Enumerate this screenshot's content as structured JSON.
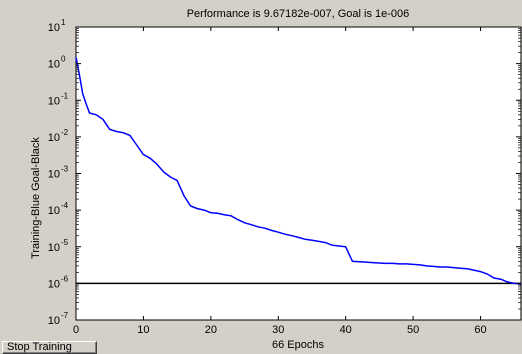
{
  "toolbar": {
    "stop_label": "Stop Training"
  },
  "colors": {
    "background": "#d4d0c8",
    "axes_bg": "#ffffff",
    "training": "#0000ff",
    "goal": "#000000"
  },
  "chart_data": {
    "type": "line",
    "title": "Performance is 9.67182e-007, Goal is 1e-006",
    "xlabel": "66 Epochs",
    "ylabel": "Training-Blue  Goal-Black",
    "xlim": [
      0,
      66
    ],
    "ylim": [
      1e-07,
      10
    ],
    "yscale": "log",
    "grid": false,
    "x_ticks": [
      "0",
      "10",
      "20",
      "30",
      "40",
      "50",
      "60"
    ],
    "y_tick_exponents": [
      "1",
      "0",
      "-1",
      "-2",
      "-3",
      "-4",
      "-5",
      "-6",
      "-7"
    ],
    "y_tick_base": "10",
    "series": [
      {
        "name": "Training",
        "x": [
          0,
          0.5,
          1,
          1.5,
          2,
          3,
          4,
          5,
          6,
          7,
          8,
          9,
          10,
          11,
          12,
          13,
          14,
          15,
          16,
          17,
          18,
          19,
          20,
          21,
          22,
          23,
          24,
          25,
          26,
          27,
          28,
          29,
          30,
          31,
          32,
          33,
          34,
          35,
          36,
          37,
          38,
          39,
          40,
          41,
          42,
          43,
          44,
          45,
          46,
          47,
          48,
          49,
          50,
          51,
          52,
          53,
          54,
          55,
          56,
          57,
          58,
          59,
          60,
          61,
          62,
          63,
          64,
          65,
          66
        ],
        "y": [
          1.5,
          0.5,
          0.15,
          0.08,
          0.045,
          0.04,
          0.03,
          0.016,
          0.014,
          0.013,
          0.011,
          0.006,
          0.0033,
          0.0026,
          0.0018,
          0.0011,
          0.0008,
          0.00065,
          0.00025,
          0.00013,
          0.00011,
          0.0001,
          8.5e-05,
          8.2e-05,
          7.5e-05,
          7e-05,
          5.5e-05,
          4.5e-05,
          4e-05,
          3.5e-05,
          3.2e-05,
          2.8e-05,
          2.5e-05,
          2.2e-05,
          2e-05,
          1.8e-05,
          1.6e-05,
          1.5e-05,
          1.4e-05,
          1.3e-05,
          1.1e-05,
          1.05e-05,
          1e-05,
          4e-06,
          3.9e-06,
          3.8e-06,
          3.7e-06,
          3.6e-06,
          3.5e-06,
          3.5e-06,
          3.4e-06,
          3.4e-06,
          3.3e-06,
          3.2e-06,
          3e-06,
          2.9e-06,
          2.8e-06,
          2.8e-06,
          2.7e-06,
          2.6e-06,
          2.5e-06,
          2.3e-06,
          2.1e-06,
          1.8e-06,
          1.4e-06,
          1.3e-06,
          1.1e-06,
          1e-06,
          9.7e-07
        ]
      },
      {
        "name": "Goal",
        "x": [
          0,
          66
        ],
        "y": [
          1e-06,
          1e-06
        ]
      }
    ]
  }
}
